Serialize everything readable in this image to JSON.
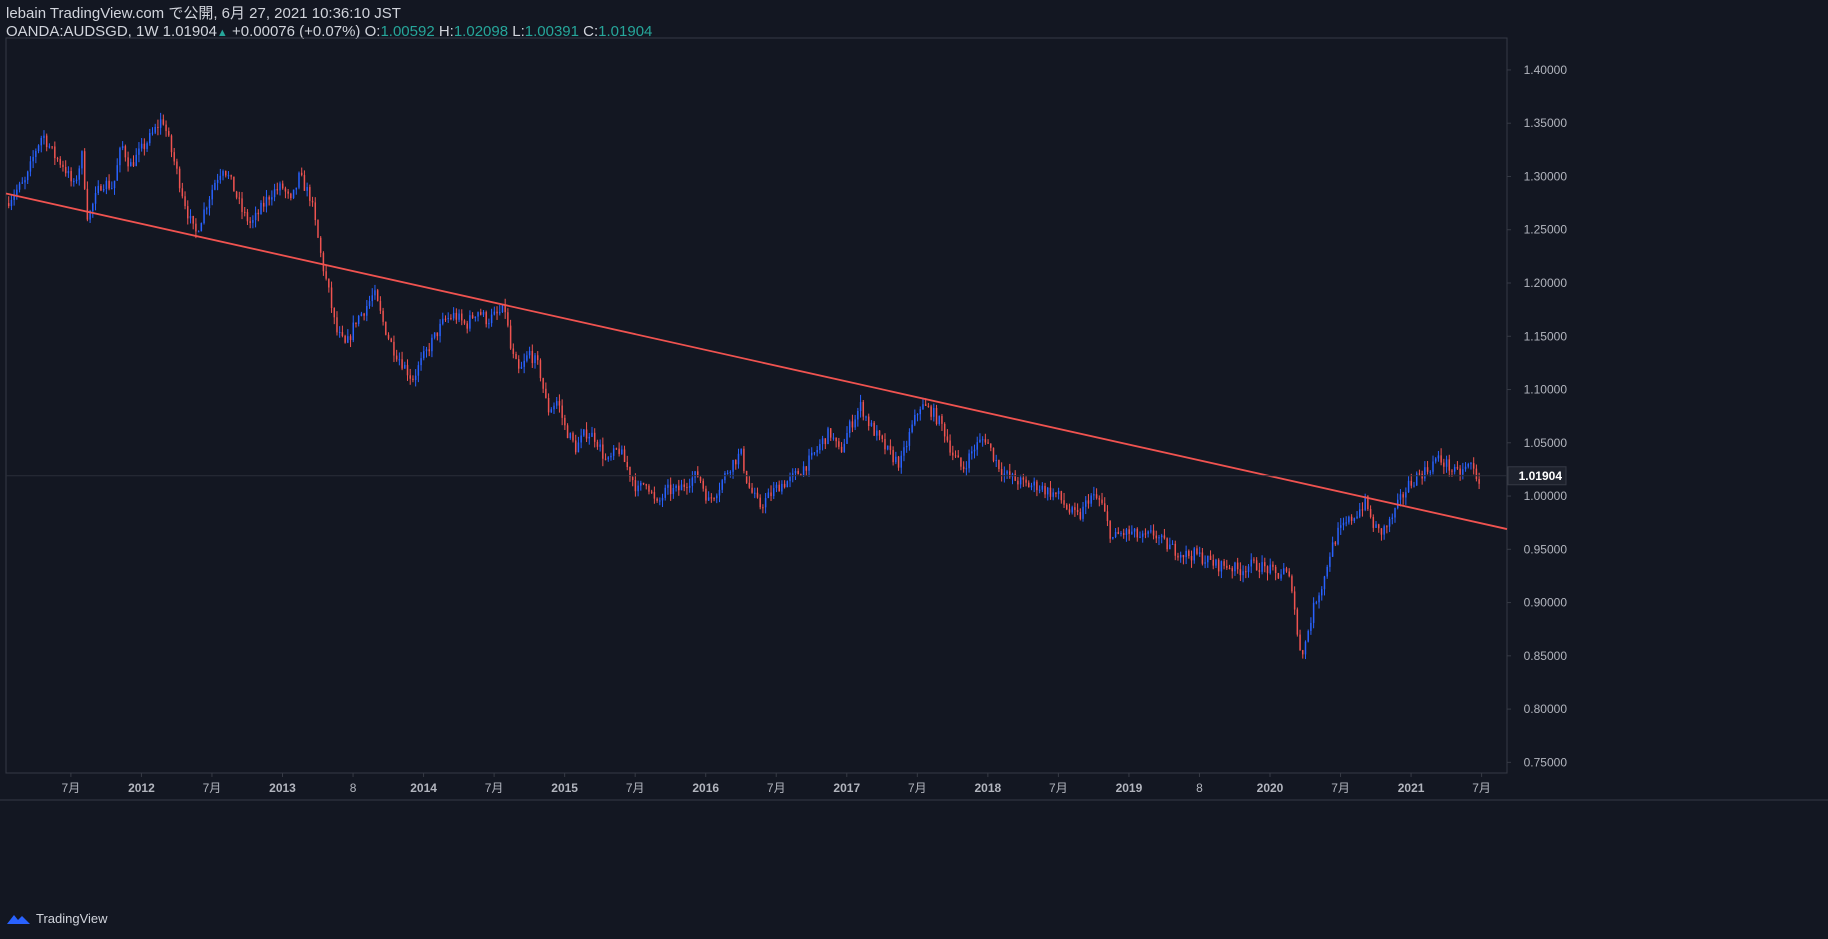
{
  "header": {
    "line1": "lebain TradingView.com で公開, 6月 27, 2021 10:36:10 JST",
    "symbol": "OANDA:AUDSGD, 1W 1.01904",
    "up_arrow": "▲",
    "change": "+0.00076 (+0.07%)",
    "o_label": "O:",
    "o_value": "1.00592",
    "h_label": "H:",
    "h_value": "1.02098",
    "l_label": "L:",
    "l_value": "1.00391",
    "c_label": "C:",
    "c_value": "1.01904"
  },
  "footer": {
    "brand": "TradingView",
    "logo_icon": "tradingview-logo-icon"
  },
  "colors": {
    "background": "#131722",
    "up": "#2962ff",
    "down": "#ef5350",
    "trendline": "#f05350",
    "axis_text": "#b2b5be",
    "border": "#363a45",
    "price_label_bg": "#1e222d"
  },
  "chart_data": {
    "type": "candlestick",
    "symbol": "OANDA:AUDSGD",
    "interval": "1W",
    "last_price": "1.01904",
    "y_range": [
      0.74,
      1.43
    ],
    "y_ticks": [
      "1.40000",
      "1.35000",
      "1.30000",
      "1.25000",
      "1.20000",
      "1.15000",
      "1.10000",
      "1.05000",
      "1.00000",
      "0.95000",
      "0.90000",
      "0.85000",
      "0.80000",
      "0.75000"
    ],
    "x_ticks": [
      {
        "label": "7月",
        "t": 2011.5,
        "bold": false
      },
      {
        "label": "2012",
        "t": 2012.0,
        "bold": true
      },
      {
        "label": "7月",
        "t": 2012.5,
        "bold": false
      },
      {
        "label": "2013",
        "t": 2013.0,
        "bold": true
      },
      {
        "label": "8",
        "t": 2013.5,
        "bold": false
      },
      {
        "label": "2014",
        "t": 2014.0,
        "bold": true
      },
      {
        "label": "7月",
        "t": 2014.5,
        "bold": false
      },
      {
        "label": "2015",
        "t": 2015.0,
        "bold": true
      },
      {
        "label": "7月",
        "t": 2015.5,
        "bold": false
      },
      {
        "label": "2016",
        "t": 2016.0,
        "bold": true
      },
      {
        "label": "7月",
        "t": 2016.5,
        "bold": false
      },
      {
        "label": "2017",
        "t": 2017.0,
        "bold": true
      },
      {
        "label": "7月",
        "t": 2017.5,
        "bold": false
      },
      {
        "label": "2018",
        "t": 2018.0,
        "bold": true
      },
      {
        "label": "7月",
        "t": 2018.5,
        "bold": false
      },
      {
        "label": "2019",
        "t": 2019.0,
        "bold": true
      },
      {
        "label": "8",
        "t": 2019.5,
        "bold": false
      },
      {
        "label": "2020",
        "t": 2020.0,
        "bold": true
      },
      {
        "label": "7月",
        "t": 2020.5,
        "bold": false
      },
      {
        "label": "2021",
        "t": 2021.0,
        "bold": true
      },
      {
        "label": "7月",
        "t": 2021.5,
        "bold": false
      }
    ],
    "x_range": [
      2011.04,
      2021.68
    ],
    "trendline": {
      "t1": 2011.04,
      "p1": 1.284,
      "t2": 2021.68,
      "p2": 0.969
    },
    "close_path": [
      [
        2011.04,
        1.275
      ],
      [
        2011.1,
        1.285
      ],
      [
        2011.18,
        1.295
      ],
      [
        2011.25,
        1.325
      ],
      [
        2011.3,
        1.34
      ],
      [
        2011.38,
        1.32
      ],
      [
        2011.45,
        1.31
      ],
      [
        2011.52,
        1.29
      ],
      [
        2011.58,
        1.32
      ],
      [
        2011.62,
        1.26
      ],
      [
        2011.66,
        1.275
      ],
      [
        2011.72,
        1.295
      ],
      [
        2011.8,
        1.29
      ],
      [
        2011.86,
        1.33
      ],
      [
        2011.92,
        1.31
      ],
      [
        2012.0,
        1.325
      ],
      [
        2012.08,
        1.34
      ],
      [
        2012.15,
        1.355
      ],
      [
        2012.22,
        1.32
      ],
      [
        2012.28,
        1.29
      ],
      [
        2012.33,
        1.265
      ],
      [
        2012.38,
        1.245
      ],
      [
        2012.45,
        1.27
      ],
      [
        2012.52,
        1.295
      ],
      [
        2012.58,
        1.31
      ],
      [
        2012.65,
        1.29
      ],
      [
        2012.72,
        1.265
      ],
      [
        2012.78,
        1.255
      ],
      [
        2012.85,
        1.27
      ],
      [
        2012.92,
        1.285
      ],
      [
        2013.0,
        1.29
      ],
      [
        2013.06,
        1.275
      ],
      [
        2013.12,
        1.3
      ],
      [
        2013.2,
        1.28
      ],
      [
        2013.28,
        1.22
      ],
      [
        2013.33,
        1.19
      ],
      [
        2013.38,
        1.155
      ],
      [
        2013.45,
        1.14
      ],
      [
        2013.52,
        1.165
      ],
      [
        2013.58,
        1.175
      ],
      [
        2013.65,
        1.19
      ],
      [
        2013.72,
        1.16
      ],
      [
        2013.78,
        1.14
      ],
      [
        2013.85,
        1.125
      ],
      [
        2013.92,
        1.11
      ],
      [
        2014.0,
        1.13
      ],
      [
        2014.08,
        1.15
      ],
      [
        2014.15,
        1.165
      ],
      [
        2014.22,
        1.17
      ],
      [
        2014.3,
        1.16
      ],
      [
        2014.38,
        1.175
      ],
      [
        2014.45,
        1.165
      ],
      [
        2014.52,
        1.17
      ],
      [
        2014.58,
        1.175
      ],
      [
        2014.62,
        1.135
      ],
      [
        2014.68,
        1.115
      ],
      [
        2014.75,
        1.135
      ],
      [
        2014.82,
        1.12
      ],
      [
        2014.88,
        1.08
      ],
      [
        2014.95,
        1.09
      ],
      [
        2015.0,
        1.065
      ],
      [
        2015.08,
        1.045
      ],
      [
        2015.15,
        1.06
      ],
      [
        2015.22,
        1.055
      ],
      [
        2015.3,
        1.03
      ],
      [
        2015.38,
        1.045
      ],
      [
        2015.45,
        1.025
      ],
      [
        2015.52,
        1.005
      ],
      [
        2015.58,
        1.015
      ],
      [
        2015.65,
        0.99
      ],
      [
        2015.72,
        1.005
      ],
      [
        2015.8,
        1.005
      ],
      [
        2015.88,
        1.015
      ],
      [
        2015.95,
        1.02
      ],
      [
        2016.02,
        0.995
      ],
      [
        2016.1,
        1.01
      ],
      [
        2016.18,
        1.03
      ],
      [
        2016.25,
        1.04
      ],
      [
        2016.3,
        1.01
      ],
      [
        2016.38,
        0.99
      ],
      [
        2016.45,
        1.0
      ],
      [
        2016.52,
        1.01
      ],
      [
        2016.6,
        1.015
      ],
      [
        2016.68,
        1.025
      ],
      [
        2016.75,
        1.035
      ],
      [
        2016.82,
        1.05
      ],
      [
        2016.88,
        1.06
      ],
      [
        2016.95,
        1.04
      ],
      [
        2017.02,
        1.065
      ],
      [
        2017.1,
        1.085
      ],
      [
        2017.15,
        1.07
      ],
      [
        2017.22,
        1.055
      ],
      [
        2017.3,
        1.04
      ],
      [
        2017.38,
        1.03
      ],
      [
        2017.45,
        1.06
      ],
      [
        2017.52,
        1.085
      ],
      [
        2017.6,
        1.08
      ],
      [
        2017.68,
        1.065
      ],
      [
        2017.75,
        1.04
      ],
      [
        2017.82,
        1.025
      ],
      [
        2017.9,
        1.045
      ],
      [
        2017.98,
        1.055
      ],
      [
        2018.05,
        1.035
      ],
      [
        2018.12,
        1.02
      ],
      [
        2018.2,
        1.015
      ],
      [
        2018.28,
        1.01
      ],
      [
        2018.35,
        1.01
      ],
      [
        2018.42,
        1.005
      ],
      [
        2018.5,
        1.0
      ],
      [
        2018.58,
        0.985
      ],
      [
        2018.65,
        0.98
      ],
      [
        2018.72,
        1.0
      ],
      [
        2018.8,
        0.995
      ],
      [
        2018.88,
        0.96
      ],
      [
        2018.95,
        0.965
      ],
      [
        2019.02,
        0.965
      ],
      [
        2019.1,
        0.96
      ],
      [
        2019.18,
        0.965
      ],
      [
        2019.25,
        0.955
      ],
      [
        2019.32,
        0.95
      ],
      [
        2019.4,
        0.945
      ],
      [
        2019.48,
        0.945
      ],
      [
        2019.55,
        0.94
      ],
      [
        2019.62,
        0.935
      ],
      [
        2019.7,
        0.935
      ],
      [
        2019.78,
        0.93
      ],
      [
        2019.85,
        0.935
      ],
      [
        2019.92,
        0.935
      ],
      [
        2020.0,
        0.93
      ],
      [
        2020.05,
        0.925
      ],
      [
        2020.1,
        0.93
      ],
      [
        2020.16,
        0.915
      ],
      [
        2020.2,
        0.86
      ],
      [
        2020.24,
        0.855
      ],
      [
        2020.28,
        0.88
      ],
      [
        2020.33,
        0.905
      ],
      [
        2020.38,
        0.92
      ],
      [
        2020.42,
        0.945
      ],
      [
        2020.48,
        0.965
      ],
      [
        2020.55,
        0.975
      ],
      [
        2020.62,
        0.985
      ],
      [
        2020.68,
        0.995
      ],
      [
        2020.72,
        0.975
      ],
      [
        2020.78,
        0.965
      ],
      [
        2020.85,
        0.975
      ],
      [
        2020.92,
        0.995
      ],
      [
        2020.98,
        1.01
      ],
      [
        2021.05,
        1.02
      ],
      [
        2021.12,
        1.025
      ],
      [
        2021.18,
        1.035
      ],
      [
        2021.25,
        1.03
      ],
      [
        2021.32,
        1.02
      ],
      [
        2021.38,
        1.025
      ],
      [
        2021.42,
        1.03
      ],
      [
        2021.48,
        1.015
      ],
      [
        2021.5,
        1.019
      ]
    ]
  }
}
